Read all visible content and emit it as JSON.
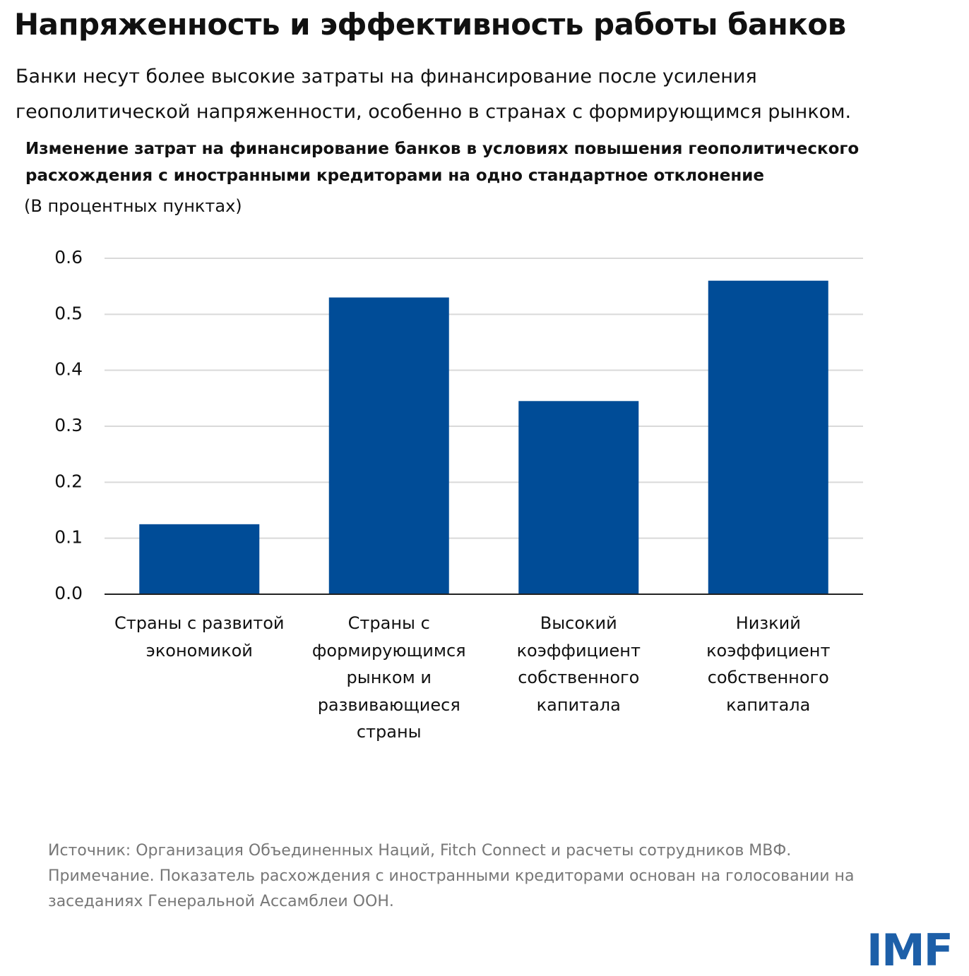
{
  "chart_data": {
    "type": "bar",
    "title": "Напряженность и эффективность работы банков",
    "subtitle": "Банки несут более высокие затраты на финансирование после усиления геополитической напряженности, особенно в странах с формирующимся рынком.",
    "chart_title": "Изменение затрат на финансирование банков в условиях повышения геополитического расхождения с иностранными кредиторами на одно стандартное отклонение",
    "unit": "(В процентных пунктах)",
    "categories": [
      "Страны с развитой экономикой",
      "Страны с формирующимся рынком и развивающиеся страны",
      "Высокий коэффициент собственного капитала",
      "Низкий коэффициент собственного капитала"
    ],
    "values": [
      0.125,
      0.53,
      0.345,
      0.56
    ],
    "color": "#004c97",
    "ylim": [
      0,
      0.6
    ],
    "yticks": [
      {
        "value": 0,
        "label": "0.0"
      },
      0.1,
      0.2,
      0.3,
      0.4,
      0.5,
      0.6
    ],
    "grid": true,
    "source": "Источник: Организация Объединенных Наций, Fitch Connect и расчеты сотрудников МВФ.",
    "note": "Примечание. Показатель расхождения с иностранными кредиторами основан на голосовании на заседаниях Генеральной Ассамблеи ООН.",
    "logo": "IMF"
  }
}
